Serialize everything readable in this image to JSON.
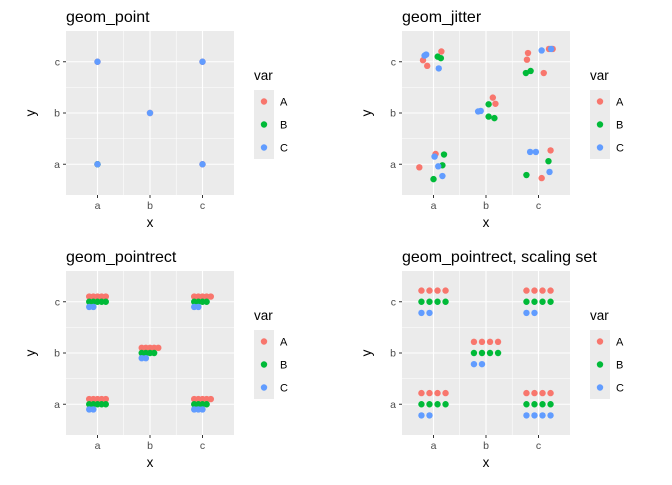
{
  "colors": {
    "panel_bg": "#EBEBEB",
    "grid": "#FFFFFF",
    "tick_text": "#4D4D4D",
    "A": "#F8766D",
    "B": "#00BA38",
    "C": "#619CFF"
  },
  "chart_data": [
    {
      "type": "scatter",
      "title": "geom_point",
      "xlabel": "x",
      "ylabel": "y",
      "x_categories": [
        "a",
        "b",
        "c"
      ],
      "y_categories": [
        "a",
        "b",
        "c"
      ],
      "legend": {
        "title": "var",
        "labels": [
          "A",
          "B",
          "C"
        ],
        "position": "right"
      },
      "grid": true,
      "points": [
        {
          "x": "a",
          "y": "a",
          "var": "A",
          "dx": 0,
          "dy": 0
        },
        {
          "x": "a",
          "y": "a",
          "var": "B",
          "dx": 0,
          "dy": 0
        },
        {
          "x": "a",
          "y": "a",
          "var": "C",
          "dx": 0,
          "dy": 0
        },
        {
          "x": "a",
          "y": "c",
          "var": "A",
          "dx": 0,
          "dy": 0
        },
        {
          "x": "a",
          "y": "c",
          "var": "C",
          "dx": 0,
          "dy": 0
        },
        {
          "x": "b",
          "y": "b",
          "var": "A",
          "dx": 0,
          "dy": 0
        },
        {
          "x": "b",
          "y": "b",
          "var": "C",
          "dx": 0,
          "dy": 0
        },
        {
          "x": "c",
          "y": "a",
          "var": "A",
          "dx": 0,
          "dy": 0
        },
        {
          "x": "c",
          "y": "a",
          "var": "C",
          "dx": 0,
          "dy": 0
        },
        {
          "x": "c",
          "y": "c",
          "var": "A",
          "dx": 0,
          "dy": 0
        },
        {
          "x": "c",
          "y": "c",
          "var": "C",
          "dx": 0,
          "dy": 0
        }
      ]
    },
    {
      "type": "scatter",
      "title": "geom_jitter",
      "xlabel": "x",
      "ylabel": "y",
      "x_categories": [
        "a",
        "b",
        "c"
      ],
      "y_categories": [
        "a",
        "b",
        "c"
      ],
      "legend": {
        "title": "var",
        "labels": [
          "A",
          "B",
          "C"
        ],
        "position": "right"
      },
      "grid": true,
      "points": [
        {
          "x": "a",
          "y": "c",
          "var": "A",
          "dx": -0.2,
          "dy": 0.03
        },
        {
          "x": "a",
          "y": "c",
          "var": "A",
          "dx": -0.12,
          "dy": -0.08
        },
        {
          "x": "a",
          "y": "c",
          "var": "A",
          "dx": 0.15,
          "dy": 0.2
        },
        {
          "x": "a",
          "y": "c",
          "var": "B",
          "dx": 0.08,
          "dy": 0.1
        },
        {
          "x": "a",
          "y": "c",
          "var": "B",
          "dx": 0.14,
          "dy": 0.07
        },
        {
          "x": "a",
          "y": "c",
          "var": "C",
          "dx": -0.17,
          "dy": 0.12
        },
        {
          "x": "a",
          "y": "c",
          "var": "C",
          "dx": -0.14,
          "dy": 0.14
        },
        {
          "x": "a",
          "y": "c",
          "var": "C",
          "dx": 0.1,
          "dy": -0.13
        },
        {
          "x": "b",
          "y": "b",
          "var": "A",
          "dx": 0.13,
          "dy": 0.3
        },
        {
          "x": "b",
          "y": "b",
          "var": "A",
          "dx": 0.18,
          "dy": 0.18
        },
        {
          "x": "b",
          "y": "b",
          "var": "B",
          "dx": 0.05,
          "dy": 0.17
        },
        {
          "x": "b",
          "y": "b",
          "var": "B",
          "dx": 0.05,
          "dy": -0.07
        },
        {
          "x": "b",
          "y": "b",
          "var": "B",
          "dx": 0.16,
          "dy": -0.1
        },
        {
          "x": "b",
          "y": "b",
          "var": "C",
          "dx": -0.15,
          "dy": 0.03
        },
        {
          "x": "b",
          "y": "b",
          "var": "C",
          "dx": -0.1,
          "dy": 0.04
        },
        {
          "x": "c",
          "y": "c",
          "var": "A",
          "dx": -0.2,
          "dy": 0.17
        },
        {
          "x": "c",
          "y": "c",
          "var": "A",
          "dx": -0.22,
          "dy": 0.04
        },
        {
          "x": "c",
          "y": "c",
          "var": "A",
          "dx": 0.1,
          "dy": -0.22
        },
        {
          "x": "c",
          "y": "c",
          "var": "A",
          "dx": 0.2,
          "dy": 0.25
        },
        {
          "x": "c",
          "y": "c",
          "var": "A",
          "dx": 0.27,
          "dy": 0.25
        },
        {
          "x": "c",
          "y": "c",
          "var": "B",
          "dx": -0.24,
          "dy": -0.22
        },
        {
          "x": "c",
          "y": "c",
          "var": "B",
          "dx": -0.15,
          "dy": -0.18
        },
        {
          "x": "c",
          "y": "c",
          "var": "C",
          "dx": 0.06,
          "dy": 0.22
        },
        {
          "x": "c",
          "y": "c",
          "var": "C",
          "dx": 0.24,
          "dy": 0.25
        },
        {
          "x": "a",
          "y": "a",
          "var": "A",
          "dx": -0.27,
          "dy": -0.06
        },
        {
          "x": "a",
          "y": "a",
          "var": "A",
          "dx": 0.04,
          "dy": 0.2
        },
        {
          "x": "a",
          "y": "a",
          "var": "B",
          "dx": 0.0,
          "dy": -0.29
        },
        {
          "x": "a",
          "y": "a",
          "var": "B",
          "dx": 0.2,
          "dy": 0.19
        },
        {
          "x": "a",
          "y": "a",
          "var": "B",
          "dx": 0.17,
          "dy": -0.02
        },
        {
          "x": "a",
          "y": "a",
          "var": "C",
          "dx": 0.02,
          "dy": 0.15
        },
        {
          "x": "a",
          "y": "a",
          "var": "C",
          "dx": 0.17,
          "dy": -0.23
        },
        {
          "x": "a",
          "y": "a",
          "var": "C",
          "dx": 0.09,
          "dy": -0.04
        },
        {
          "x": "c",
          "y": "a",
          "var": "A",
          "dx": 0.23,
          "dy": 0.27
        },
        {
          "x": "c",
          "y": "a",
          "var": "A",
          "dx": 0.06,
          "dy": -0.27
        },
        {
          "x": "c",
          "y": "a",
          "var": "B",
          "dx": 0.19,
          "dy": 0.06
        },
        {
          "x": "c",
          "y": "a",
          "var": "B",
          "dx": -0.23,
          "dy": -0.21
        },
        {
          "x": "c",
          "y": "a",
          "var": "C",
          "dx": -0.16,
          "dy": 0.24
        },
        {
          "x": "c",
          "y": "a",
          "var": "C",
          "dx": -0.05,
          "dy": 0.24
        },
        {
          "x": "c",
          "y": "a",
          "var": "C",
          "dx": 0.21,
          "dy": -0.15
        }
      ]
    },
    {
      "type": "scatter",
      "title": "geom_pointrect",
      "xlabel": "x",
      "ylabel": "y",
      "x_categories": [
        "a",
        "b",
        "c"
      ],
      "y_categories": [
        "a",
        "b",
        "c"
      ],
      "legend": {
        "title": "var",
        "labels": [
          "A",
          "B",
          "C"
        ],
        "position": "right"
      },
      "grid": true,
      "groups": [
        {
          "x": "a",
          "y": "c",
          "rows": [
            {
              "var": "A",
              "n": 5
            },
            {
              "var": "B",
              "n": 5
            },
            {
              "var": "C",
              "n": 2
            }
          ],
          "dx": 0.079,
          "dy": 0.101
        },
        {
          "x": "b",
          "y": "b",
          "rows": [
            {
              "var": "A",
              "n": 5
            },
            {
              "var": "B",
              "n": 4
            },
            {
              "var": "C",
              "n": 2
            }
          ],
          "dx": 0.079,
          "dy": 0.101
        },
        {
          "x": "c",
          "y": "c",
          "rows": [
            {
              "var": "A",
              "n": 5
            },
            {
              "var": "B",
              "n": 4
            },
            {
              "var": "C",
              "n": 2
            }
          ],
          "dx": 0.079,
          "dy": 0.101
        },
        {
          "x": "a",
          "y": "a",
          "rows": [
            {
              "var": "A",
              "n": 5
            },
            {
              "var": "B",
              "n": 5
            },
            {
              "var": "C",
              "n": 2
            }
          ],
          "dx": 0.079,
          "dy": 0.101
        },
        {
          "x": "c",
          "y": "a",
          "rows": [
            {
              "var": "A",
              "n": 5
            },
            {
              "var": "B",
              "n": 4
            },
            {
              "var": "C",
              "n": 3
            }
          ],
          "dx": 0.079,
          "dy": 0.101
        }
      ]
    },
    {
      "type": "scatter",
      "title": "geom_pointrect, scaling set",
      "xlabel": "x",
      "ylabel": "y",
      "x_categories": [
        "a",
        "b",
        "c"
      ],
      "y_categories": [
        "a",
        "b",
        "c"
      ],
      "legend": {
        "title": "var",
        "labels": [
          "A",
          "B",
          "C"
        ],
        "position": "right"
      },
      "grid": true,
      "groups": [
        {
          "x": "a",
          "y": "c",
          "rows": [
            {
              "var": "A",
              "n": 4
            },
            {
              "var": "B",
              "n": 4
            },
            {
              "var": "C",
              "n": 2
            }
          ],
          "dx": 0.153,
          "dy": 0.218
        },
        {
          "x": "b",
          "y": "b",
          "rows": [
            {
              "var": "A",
              "n": 4
            },
            {
              "var": "B",
              "n": 4
            },
            {
              "var": "C",
              "n": 2
            }
          ],
          "dx": 0.153,
          "dy": 0.218
        },
        {
          "x": "c",
          "y": "c",
          "rows": [
            {
              "var": "A",
              "n": 4
            },
            {
              "var": "B",
              "n": 4
            },
            {
              "var": "C",
              "n": 2
            }
          ],
          "dx": 0.153,
          "dy": 0.218
        },
        {
          "x": "a",
          "y": "a",
          "rows": [
            {
              "var": "A",
              "n": 4
            },
            {
              "var": "B",
              "n": 4
            },
            {
              "var": "C",
              "n": 2
            }
          ],
          "dx": 0.153,
          "dy": 0.218
        },
        {
          "x": "c",
          "y": "a",
          "rows": [
            {
              "var": "A",
              "n": 4
            },
            {
              "var": "B",
              "n": 4
            },
            {
              "var": "C",
              "n": 4
            }
          ],
          "dx": 0.153,
          "dy": 0.218
        }
      ]
    }
  ]
}
